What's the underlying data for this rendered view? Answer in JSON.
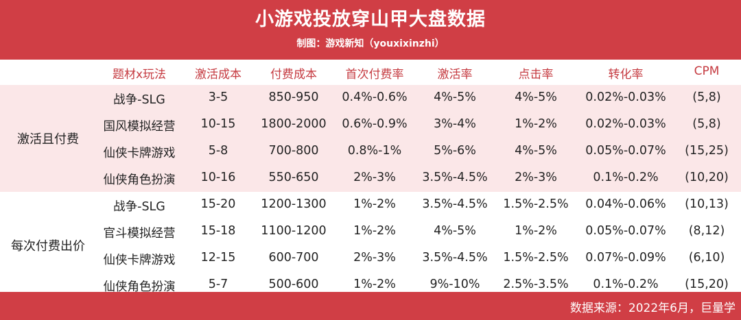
{
  "header": {
    "title": "小游戏投放穿山甲大盘数据",
    "subtitle": "制图：游戏新知（youxixinzhi）"
  },
  "columns": [
    "题材x玩法",
    "激活成本",
    "付费成本",
    "首次付费率",
    "激活率",
    "点击率",
    "转化率",
    "CPM"
  ],
  "groups": [
    {
      "label": "激活且付费",
      "rows": [
        [
          "战争-SLG",
          "3-5",
          "850-950",
          "0.4%-0.6%",
          "4%-5%",
          "4%-5%",
          "0.02%-0.03%",
          "(5,8)"
        ],
        [
          "国风模拟经营",
          "10-15",
          "1800-2000",
          "0.6%-0.9%",
          "3%-4%",
          "1%-2%",
          "0.02%-0.03%",
          "(5,8)"
        ],
        [
          "仙侠卡牌游戏",
          "5-8",
          "700-800",
          "0.8%-1%",
          "5%-6%",
          "4%-5%",
          "0.05%-0.07%",
          "(15,25)"
        ],
        [
          "仙侠角色扮演",
          "10-16",
          "550-650",
          "2%-3%",
          "3.5%-4.5%",
          "2%-3%",
          "0.1%-0.2%",
          "(10,20)"
        ]
      ]
    },
    {
      "label": "每次付费出价",
      "rows": [
        [
          "战争-SLG",
          "15-20",
          "1200-1300",
          "1%-2%",
          "3.5%-4.5%",
          "1.5%-2.5%",
          "0.04%-0.06%",
          "(10,13)"
        ],
        [
          "官斗模拟经营",
          "15-18",
          "1100-1200",
          "1%-2%",
          "4%-5%",
          "1%-2%",
          "0.05%-0.07%",
          "(8,12)"
        ],
        [
          "仙侠卡牌游戏",
          "12-15",
          "600-700",
          "2%-3%",
          "3.5%-4.5%",
          "1.5%-2.5%",
          "0.07%-0.09%",
          "(6,10)"
        ],
        [
          "仙侠角色扮演",
          "5-7",
          "500-600",
          "1%-2%",
          "9%-10%",
          "2.5%-3.5%",
          "0.1%-0.2%",
          "(15,20)"
        ]
      ]
    }
  ],
  "footer": {
    "source": "数据来源：2022年6月，巨量学"
  },
  "colors": {
    "brand_red": "#d03e45",
    "header_text": "#c53a40",
    "band_pink": "#fbe7e8"
  }
}
